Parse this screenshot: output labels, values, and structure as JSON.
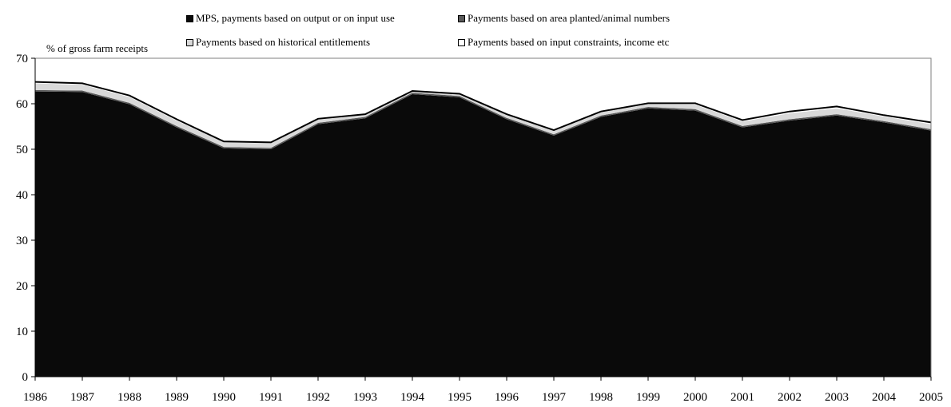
{
  "chart_data": {
    "type": "area",
    "stacked": true,
    "y_unit_label": "% of gross farm receipts",
    "x": [
      "1986",
      "1987",
      "1988",
      "1989",
      "1990",
      "1991",
      "1992",
      "1993",
      "1994",
      "1995",
      "1996",
      "1997",
      "1998",
      "1999",
      "2000",
      "2001",
      "2002",
      "2003",
      "2004",
      "2005"
    ],
    "ylim": [
      0,
      70
    ],
    "yticks": [
      0,
      10,
      20,
      30,
      40,
      50,
      60,
      70
    ],
    "grid": false,
    "legend_position": "top",
    "series": [
      {
        "name": "MPS, payments based on output or on input use",
        "color": "#0a0a0a",
        "values": [
          62.7,
          62.6,
          59.9,
          54.8,
          50.2,
          50.0,
          55.5,
          56.8,
          62.1,
          61.4,
          56.6,
          53.0,
          57.1,
          59.0,
          58.5,
          54.8,
          56.3,
          57.4,
          55.9,
          54.1
        ]
      },
      {
        "name": "Payments based on area planted/animal numbers",
        "color": "#595959",
        "values": [
          0.3,
          0.3,
          0.3,
          0.3,
          0.3,
          0.3,
          0.3,
          0.3,
          0.3,
          0.3,
          0.3,
          0.3,
          0.3,
          0.3,
          0.3,
          0.3,
          0.3,
          0.3,
          0.3,
          0.3
        ]
      },
      {
        "name": "Payments based on historical entitlements",
        "color": "#d9d9d9",
        "values": [
          1.5,
          1.3,
          1.3,
          1.2,
          1.0,
          1.0,
          0.7,
          0.4,
          0.2,
          0.3,
          0.6,
          0.7,
          0.7,
          0.6,
          1.0,
          1.0,
          1.3,
          1.3,
          1.0,
          1.1
        ]
      },
      {
        "name": "Payments based on input constraints, income etc",
        "color": "#ffffff",
        "values": [
          0.3,
          0.3,
          0.3,
          0.3,
          0.2,
          0.2,
          0.2,
          0.2,
          0.2,
          0.2,
          0.2,
          0.2,
          0.2,
          0.2,
          0.3,
          0.3,
          0.4,
          0.4,
          0.3,
          0.4
        ]
      }
    ]
  }
}
